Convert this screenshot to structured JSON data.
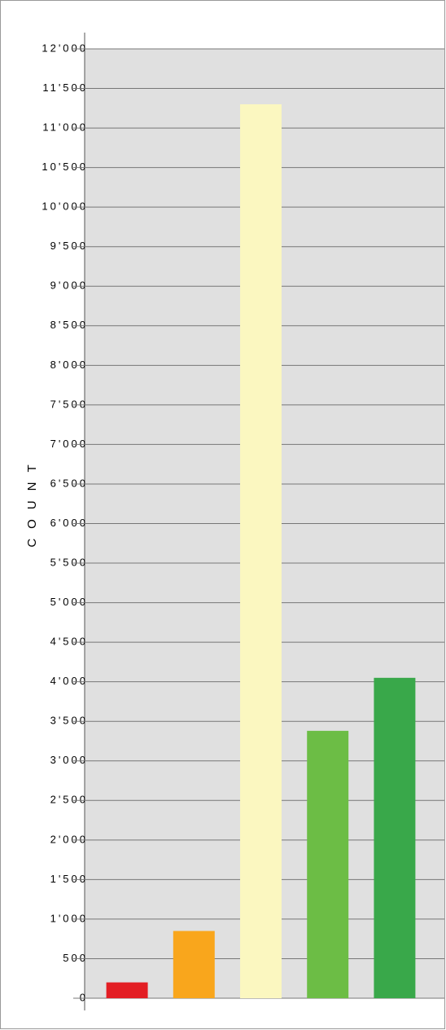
{
  "chart_data": {
    "type": "bar",
    "y_label": "COUNT",
    "categories": [
      null,
      null,
      null,
      null,
      null
    ],
    "values": [
      200,
      850,
      11300,
      3380,
      4050
    ],
    "colors": [
      "#e31e24",
      "#f9a61c",
      "#fbf7c0",
      "#6cbd45",
      "#39a84a"
    ],
    "ylim": [
      0,
      12000
    ],
    "yticks": [
      0,
      500,
      {
        "value": 1000,
        "label": "1'000"
      },
      {
        "value": 1500,
        "label": "1'500"
      },
      {
        "value": 2000,
        "label": "2'000"
      },
      {
        "value": 2500,
        "label": "2'500"
      },
      {
        "value": 3000,
        "label": "3'000"
      },
      {
        "value": 3500,
        "label": "3'500"
      },
      {
        "value": 4000,
        "label": "4'000"
      },
      {
        "value": 4500,
        "label": "4'500"
      },
      {
        "value": 5000,
        "label": "5'000"
      },
      {
        "value": 5500,
        "label": "5'500"
      },
      {
        "value": 6000,
        "label": "6'000"
      },
      {
        "value": 6500,
        "label": "6'500"
      },
      {
        "value": 7000,
        "label": "7'000"
      },
      {
        "value": 7500,
        "label": "7'500"
      },
      {
        "value": 8000,
        "label": "8'000"
      },
      {
        "value": 8500,
        "label": "8'500"
      },
      {
        "value": 9000,
        "label": "9'000"
      },
      {
        "value": 9500,
        "label": "9'500"
      },
      {
        "value": 10000,
        "label": "10'000"
      },
      {
        "value": 10500,
        "label": "10'500"
      },
      {
        "value": 11000,
        "label": "11'000"
      },
      {
        "value": 11500,
        "label": "11'500"
      },
      {
        "value": 12000,
        "label": "12'000"
      }
    ],
    "grid": true
  }
}
